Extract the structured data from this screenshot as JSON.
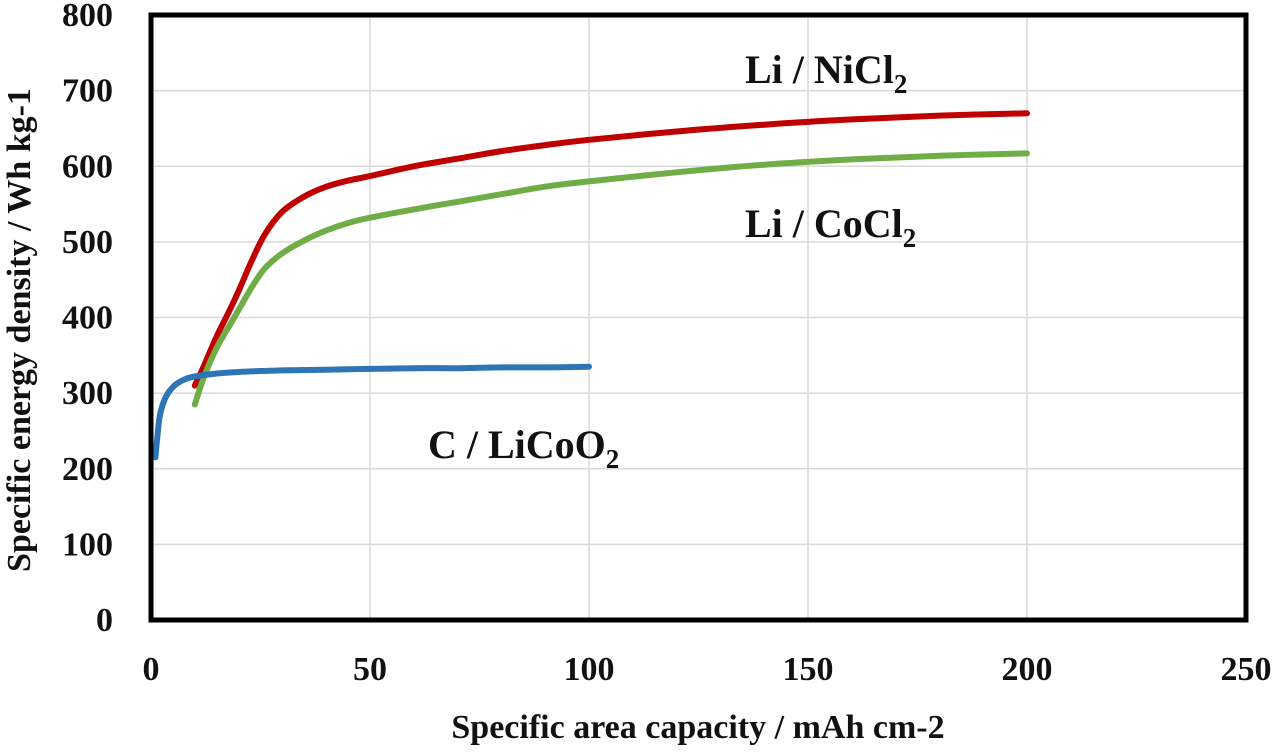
{
  "chart_data": {
    "type": "line",
    "title": "",
    "xlabel": "Specific area capacity / mAh cm-2",
    "ylabel": "Specific energy density / Wh kg-1",
    "xlim": [
      0,
      250
    ],
    "ylim": [
      0,
      800
    ],
    "xticks": [
      0,
      50,
      100,
      150,
      200,
      250
    ],
    "yticks": [
      0,
      100,
      200,
      300,
      400,
      500,
      600,
      700,
      800
    ],
    "grid": true,
    "series": [
      {
        "name": "Li / NiCl2",
        "label_main": "Li / NiCl",
        "label_sub": "2",
        "color": "#c00000",
        "x": [
          10,
          12,
          15,
          18,
          20,
          23,
          26,
          30,
          35,
          40,
          45,
          50,
          60,
          70,
          80,
          90,
          100,
          120,
          140,
          160,
          180,
          200
        ],
        "y": [
          310,
          335,
          375,
          410,
          435,
          475,
          510,
          540,
          560,
          573,
          581,
          587,
          600,
          610,
          620,
          628,
          635,
          646,
          655,
          662,
          667,
          670
        ]
      },
      {
        "name": "Li / CoCl2",
        "label_main": "Li / CoCl",
        "label_sub": "2",
        "color": "#70ad47",
        "x": [
          10,
          12,
          15,
          18,
          20,
          23,
          26,
          30,
          35,
          40,
          45,
          50,
          60,
          70,
          80,
          90,
          100,
          120,
          140,
          160,
          180,
          200
        ],
        "y": [
          285,
          320,
          360,
          390,
          410,
          440,
          465,
          485,
          502,
          515,
          525,
          532,
          543,
          553,
          563,
          573,
          580,
          592,
          602,
          609,
          614,
          617
        ]
      },
      {
        "name": "C / LiCoO2",
        "label_main": "C / LiCoO",
        "label_sub": "2",
        "color": "#2e75b6",
        "x": [
          1,
          1.5,
          2,
          3,
          4,
          5,
          6,
          8,
          10,
          15,
          20,
          30,
          40,
          50,
          60,
          70,
          80,
          90,
          100
        ],
        "y": [
          215,
          245,
          270,
          290,
          301,
          308,
          313,
          319,
          322,
          326,
          328,
          330,
          331,
          332,
          333,
          333,
          334,
          334,
          335
        ]
      }
    ]
  }
}
